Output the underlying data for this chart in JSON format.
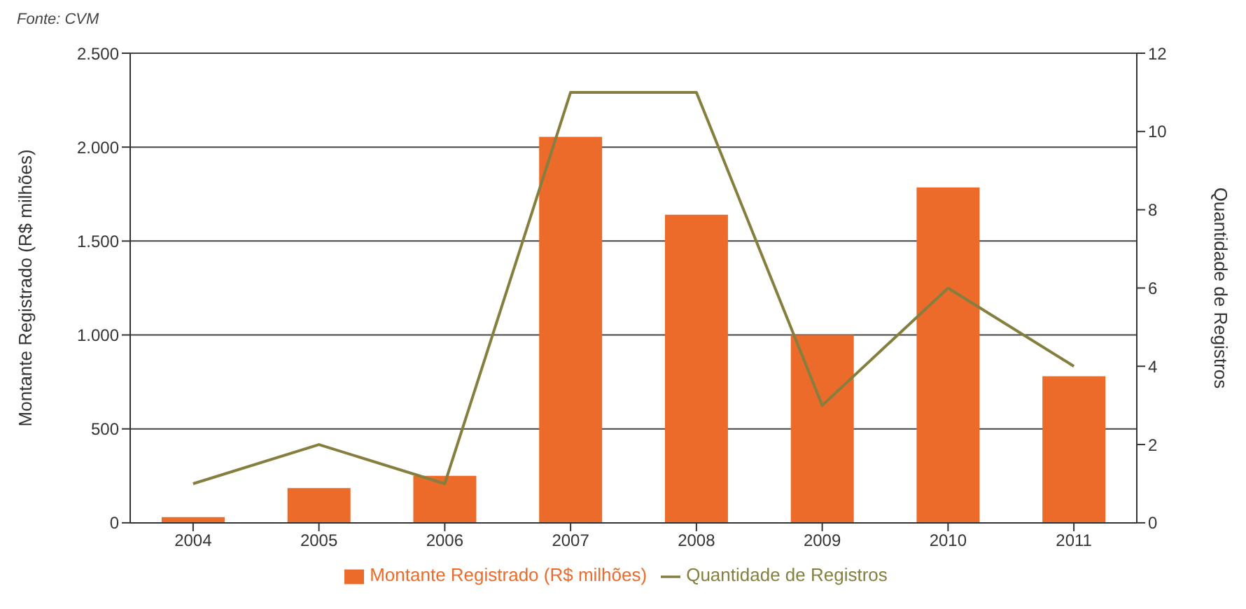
{
  "chart_data": {
    "type": "bar",
    "categories": [
      "2004",
      "2005",
      "2006",
      "2007",
      "2008",
      "2009",
      "2010",
      "2011"
    ],
    "series": [
      {
        "name": "Montante Registrado (R$ milhões)",
        "type": "bar",
        "color": "#ec6a2a",
        "values": [
          30,
          185,
          250,
          2055,
          1640,
          1000,
          1785,
          780
        ]
      },
      {
        "name": "Quantidade de Registros",
        "type": "line",
        "axis": "y2",
        "color": "#857f3f",
        "values": [
          1,
          2,
          1,
          11,
          11,
          3,
          6,
          4
        ]
      }
    ],
    "ylabel": "Montante Registrado (R$ milhões)",
    "y2label": "Quantidade de Registros",
    "ylim": [
      0,
      2500
    ],
    "yticks": [
      0,
      {
        "value": 500,
        "label": "500"
      },
      {
        "value": 1000,
        "label": "1.000"
      },
      {
        "value": 1500,
        "label": "1.500"
      },
      {
        "value": 2000,
        "label": "2.000"
      },
      {
        "value": 2500,
        "label": "2.500"
      }
    ],
    "y2lim": [
      0,
      12
    ],
    "y2ticks": [
      0,
      2,
      4,
      6,
      8,
      10,
      12
    ],
    "grid": "y",
    "legend": "bottom",
    "marker": "none",
    "line_style": "solid",
    "annotations": [
      "Fonte: CVM"
    ]
  }
}
